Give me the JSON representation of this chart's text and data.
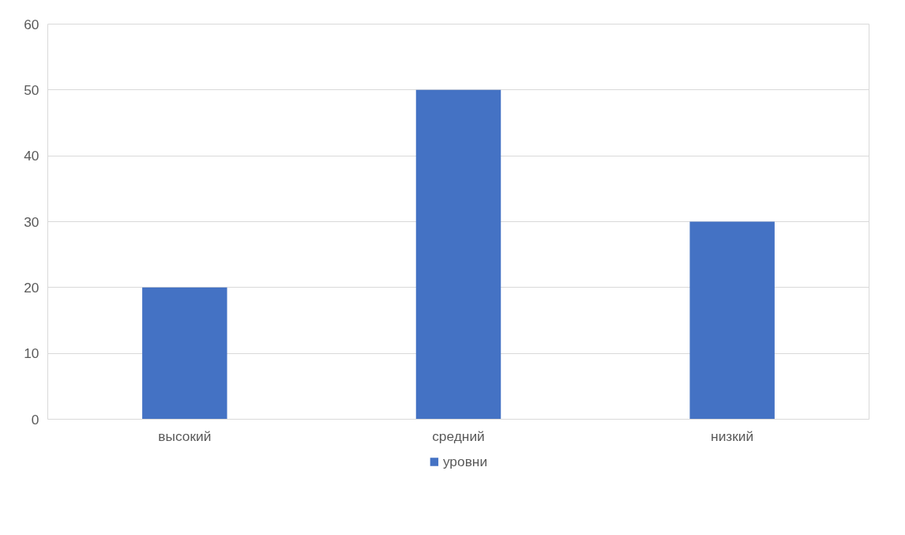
{
  "chart_data": {
    "type": "bar",
    "categories": [
      "высокий",
      "средний",
      "низкий"
    ],
    "series": [
      {
        "name": "уровни",
        "color": "#4472c4",
        "values": [
          20,
          50,
          30
        ]
      }
    ],
    "ylim": [
      0,
      60
    ],
    "yticks": [
      0,
      10,
      20,
      30,
      40,
      50,
      60
    ],
    "grid": "y",
    "legend": "bottom"
  }
}
